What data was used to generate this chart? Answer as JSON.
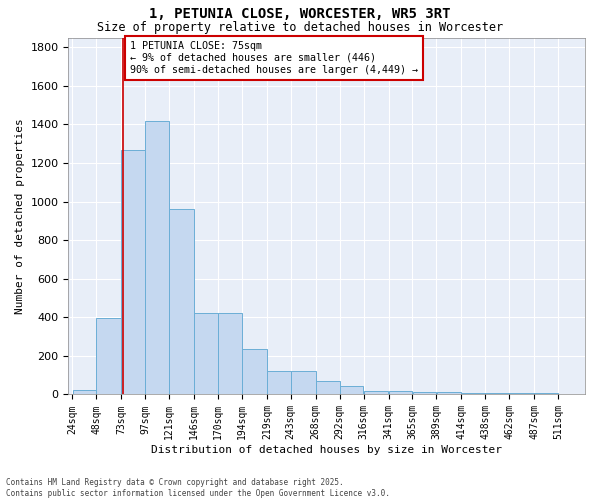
{
  "title": "1, PETUNIA CLOSE, WORCESTER, WR5 3RT",
  "subtitle": "Size of property relative to detached houses in Worcester",
  "xlabel": "Distribution of detached houses by size in Worcester",
  "ylabel": "Number of detached properties",
  "annotation_line1": "1 PETUNIA CLOSE: 75sqm",
  "annotation_line2": "← 9% of detached houses are smaller (446)",
  "annotation_line3": "90% of semi-detached houses are larger (4,449) →",
  "bar_left_edges": [
    24,
    48,
    73,
    97,
    121,
    146,
    170,
    194,
    219,
    243,
    268,
    292,
    316,
    341,
    365,
    389,
    414,
    438,
    462,
    487
  ],
  "bar_widths": [
    24,
    25,
    24,
    24,
    25,
    24,
    24,
    25,
    24,
    25,
    24,
    24,
    25,
    24,
    24,
    25,
    24,
    24,
    25,
    24
  ],
  "bar_heights": [
    25,
    395,
    1265,
    1415,
    960,
    420,
    420,
    235,
    120,
    120,
    70,
    45,
    20,
    20,
    15,
    15,
    10,
    10,
    10,
    10
  ],
  "tick_labels": [
    "24sqm",
    "48sqm",
    "73sqm",
    "97sqm",
    "121sqm",
    "146sqm",
    "170sqm",
    "194sqm",
    "219sqm",
    "243sqm",
    "268sqm",
    "292sqm",
    "316sqm",
    "341sqm",
    "365sqm",
    "389sqm",
    "414sqm",
    "438sqm",
    "462sqm",
    "487sqm",
    "511sqm"
  ],
  "tick_positions": [
    24,
    48,
    73,
    97,
    121,
    146,
    170,
    194,
    219,
    243,
    268,
    292,
    316,
    341,
    365,
    389,
    414,
    438,
    462,
    487,
    511
  ],
  "bar_color": "#c5d8f0",
  "bar_edge_color": "#6baed6",
  "vline_x": 75,
  "vline_color": "#cc0000",
  "annotation_box_color": "#cc0000",
  "background_color": "#e8eef8",
  "grid_color": "#ffffff",
  "ylim": [
    0,
    1850
  ],
  "yticks": [
    0,
    200,
    400,
    600,
    800,
    1000,
    1200,
    1400,
    1600,
    1800
  ],
  "footer_line1": "Contains HM Land Registry data © Crown copyright and database right 2025.",
  "footer_line2": "Contains public sector information licensed under the Open Government Licence v3.0."
}
